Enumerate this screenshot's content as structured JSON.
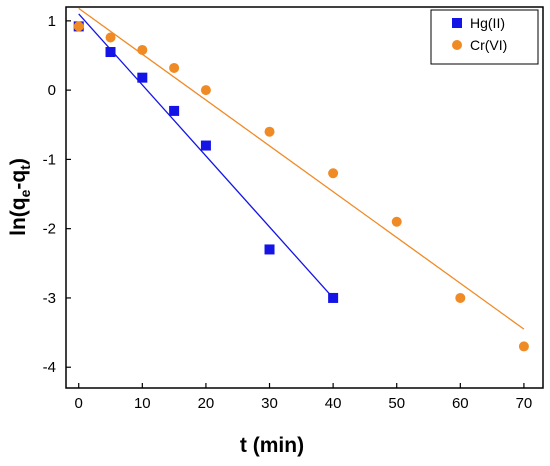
{
  "chart_data": {
    "type": "scatter",
    "title": "",
    "xlabel": "t (min)",
    "ylabel_parts": {
      "main": "ln(q",
      "sub1": "e",
      "mid": "-q",
      "sub2": "t",
      "end": ")"
    },
    "xlim": [
      -2,
      73
    ],
    "ylim": [
      -4.3,
      1.2
    ],
    "xticks": [
      0,
      10,
      20,
      30,
      40,
      50,
      60,
      70
    ],
    "yticks": [
      -4,
      -3,
      -2,
      -1,
      0,
      1
    ],
    "legend_position": "top-right",
    "series": [
      {
        "name": "Hg(II)",
        "marker": "square",
        "color": "#1414e6",
        "x": [
          0,
          5,
          10,
          15,
          20,
          30,
          40
        ],
        "y": [
          0.92,
          0.55,
          0.18,
          -0.3,
          -0.8,
          -2.3,
          -3.0
        ],
        "fit": {
          "x": [
            0,
            40
          ],
          "y": [
            1.1,
            -3.0
          ]
        }
      },
      {
        "name": "Cr(VI)",
        "marker": "circle",
        "color": "#f08a24",
        "x": [
          0,
          5,
          10,
          15,
          20,
          30,
          40,
          50,
          60,
          70
        ],
        "y": [
          0.92,
          0.76,
          0.58,
          0.32,
          0.0,
          -0.6,
          -1.2,
          -1.9,
          -3.0,
          -3.7
        ],
        "fit": {
          "x": [
            0,
            70
          ],
          "y": [
            1.18,
            -3.45
          ]
        }
      }
    ]
  }
}
